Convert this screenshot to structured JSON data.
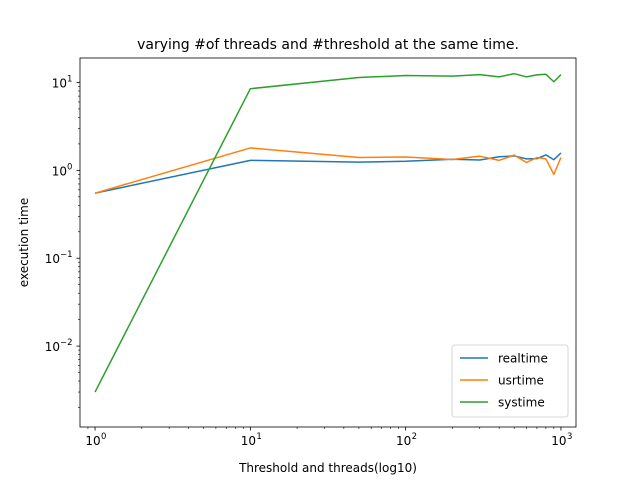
{
  "chart_data": {
    "type": "line",
    "title": "varying #of threads and #threshold at the same time.",
    "xlabel": "Threshold and threads(log10)",
    "ylabel": "execution time",
    "xscale": "log",
    "yscale": "log",
    "xlim": [
      0.8,
      1250
    ],
    "ylim": [
      0.0012,
      19
    ],
    "grid": false,
    "legend_position": "lower-right",
    "x_ticks": [
      {
        "value": 1,
        "base": "10",
        "exp": "0"
      },
      {
        "value": 10,
        "base": "10",
        "exp": "1"
      },
      {
        "value": 100,
        "base": "10",
        "exp": "2"
      },
      {
        "value": 1000,
        "base": "10",
        "exp": "3"
      }
    ],
    "y_ticks": [
      {
        "value": 0.01,
        "base": "10",
        "exp": "−2"
      },
      {
        "value": 0.1,
        "base": "10",
        "exp": "−1"
      },
      {
        "value": 1,
        "base": "10",
        "exp": "0"
      },
      {
        "value": 10,
        "base": "10",
        "exp": "1"
      }
    ],
    "series": [
      {
        "name": "realtime",
        "color": "#1f77b4",
        "x": [
          1,
          10,
          50,
          100,
          200,
          300,
          400,
          500,
          600,
          700,
          800,
          900,
          1000
        ],
        "y": [
          0.55,
          1.3,
          1.24,
          1.27,
          1.34,
          1.31,
          1.43,
          1.46,
          1.35,
          1.36,
          1.5,
          1.32,
          1.58
        ]
      },
      {
        "name": "usrtime",
        "color": "#ff7f0e",
        "x": [
          1,
          10,
          50,
          100,
          200,
          300,
          400,
          500,
          600,
          700,
          800,
          900,
          1000
        ],
        "y": [
          0.55,
          1.8,
          1.4,
          1.42,
          1.33,
          1.45,
          1.3,
          1.49,
          1.23,
          1.4,
          1.35,
          0.9,
          1.4
        ]
      },
      {
        "name": "systime",
        "color": "#2ca02c",
        "x": [
          1,
          10,
          50,
          100,
          200,
          300,
          400,
          500,
          600,
          700,
          800,
          900,
          1000
        ],
        "y": [
          0.003,
          8.5,
          11.4,
          12.0,
          11.8,
          12.3,
          11.6,
          12.6,
          11.6,
          12.2,
          12.4,
          10.2,
          12.3
        ]
      }
    ]
  }
}
